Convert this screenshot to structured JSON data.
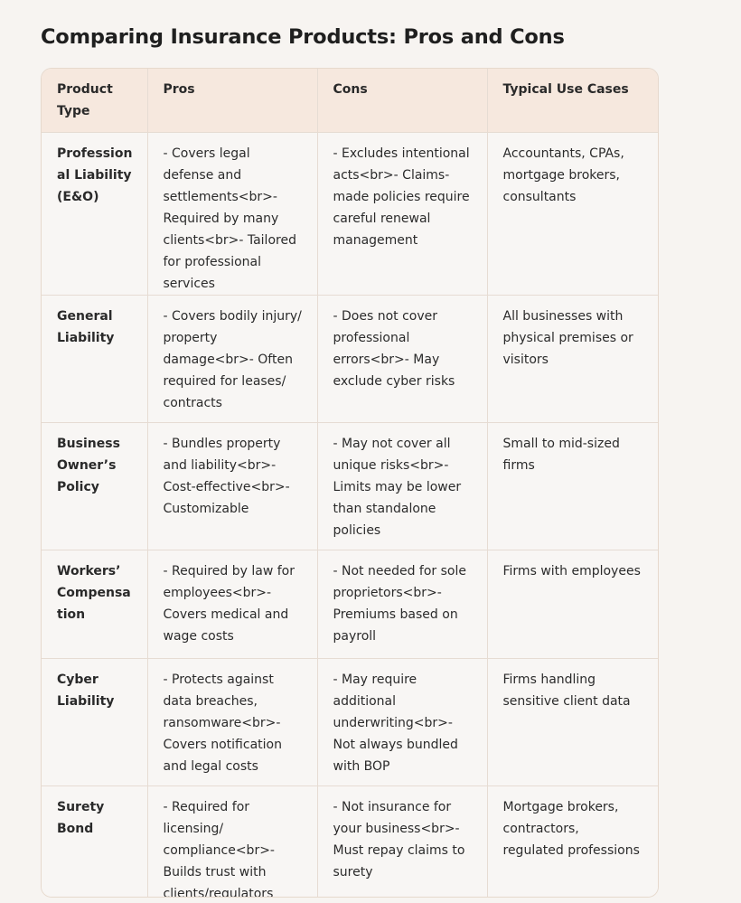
{
  "title": "Comparing Insurance Products: Pros and Cons",
  "table": {
    "headers": {
      "product_type": "Product Type",
      "pros": "Pros",
      "cons": "Cons",
      "use_cases": "Typical Use Cases"
    },
    "rows": [
      {
        "product_type": "Professional Liability (E&O)",
        "pros": "- Covers legal defense and settlements<br>- Required by many clients<br>- Tailored for professional services",
        "cons": "- Excludes intentional acts<br>- Claims-made policies require careful renewal management",
        "use_cases": "Accountants, CPAs, mortgage brokers, consultants"
      },
      {
        "product_type": "General Liability",
        "pros": "- Covers bodily injury/ property damage<br>- Often required for leases/ contracts",
        "cons": "- Does not cover professional errors<br>- May exclude cyber risks",
        "use_cases": "All businesses with physical premises or visitors"
      },
      {
        "product_type": "Business Owner’s Policy",
        "pros": "- Bundles property and liability<br>- Cost-effective<br>- Customizable",
        "cons": "- May not cover all unique risks<br>- Limits may be lower than standalone policies",
        "use_cases": "Small to mid-sized firms"
      },
      {
        "product_type": "Workers’ Compensation",
        "pros": "- Required by law for employees<br>- Covers medical and wage costs",
        "cons": "- Not needed for sole proprietors<br>- Premiums based on payroll",
        "use_cases": "Firms with employees"
      },
      {
        "product_type": "Cyber Liability",
        "pros": "- Protects against data breaches, ransomware<br>- Covers notification and legal costs",
        "cons": "- May require additional underwriting<br>- Not always bundled with BOP",
        "use_cases": "Firms handling sensitive client data"
      },
      {
        "product_type": "Surety Bond",
        "pros": "- Required for licensing/ compliance<br>- Builds trust with clients/regulators",
        "cons": "- Not insurance for your business<br>- Must repay claims to surety",
        "use_cases": "Mortgage brokers, contractors, regulated professions"
      }
    ]
  }
}
